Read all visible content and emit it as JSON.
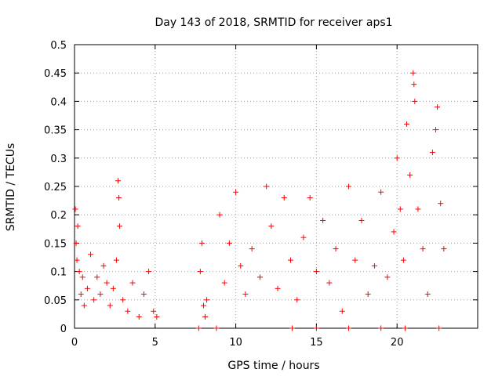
{
  "chart_data": {
    "type": "scatter",
    "title": "Day 143 of 2018, SRMTID for receiver aps1",
    "xlabel": "GPS time / hours",
    "ylabel": "SRMTID / TECUs",
    "xlim": [
      0,
      25
    ],
    "ylim": [
      0,
      0.5
    ],
    "xticks": [
      0,
      5,
      10,
      15,
      20
    ],
    "yticks": [
      0,
      0.05,
      0.1,
      0.15,
      0.2,
      0.25,
      0.3,
      0.35,
      0.4,
      0.45,
      0.5
    ],
    "grid": true,
    "marker": "+",
    "series": [
      {
        "name": "aps1",
        "color": "#ff0000",
        "points": [
          [
            0.05,
            0.21
          ],
          [
            0.1,
            0.15
          ],
          [
            0.15,
            0.12
          ],
          [
            0.2,
            0.18
          ],
          [
            0.3,
            0.1
          ],
          [
            0.4,
            0.06
          ],
          [
            0.5,
            0.09
          ],
          [
            0.6,
            0.04
          ],
          [
            0.8,
            0.07
          ],
          [
            1.0,
            0.13
          ],
          [
            1.2,
            0.05
          ],
          [
            1.4,
            0.09
          ],
          [
            1.6,
            0.06
          ],
          [
            1.8,
            0.11
          ],
          [
            2.0,
            0.08
          ],
          [
            2.2,
            0.04
          ],
          [
            2.4,
            0.07
          ],
          [
            2.6,
            0.12
          ],
          [
            2.7,
            0.26
          ],
          [
            2.75,
            0.23
          ],
          [
            2.8,
            0.18
          ],
          [
            3.0,
            0.05
          ],
          [
            3.3,
            0.03
          ],
          [
            3.6,
            0.08
          ],
          [
            4.0,
            0.02
          ],
          [
            4.3,
            0.06
          ],
          [
            4.6,
            0.1
          ],
          [
            4.9,
            0.03
          ],
          [
            5.1,
            0.02
          ],
          [
            7.8,
            0.1
          ],
          [
            7.9,
            0.15
          ],
          [
            8.0,
            0.04
          ],
          [
            8.1,
            0.02
          ],
          [
            8.2,
            0.05
          ],
          [
            9.0,
            0.2
          ],
          [
            9.3,
            0.08
          ],
          [
            9.6,
            0.15
          ],
          [
            10.0,
            0.24
          ],
          [
            10.3,
            0.11
          ],
          [
            10.6,
            0.06
          ],
          [
            11.0,
            0.14
          ],
          [
            11.5,
            0.09
          ],
          [
            11.9,
            0.25
          ],
          [
            12.2,
            0.18
          ],
          [
            12.6,
            0.07
          ],
          [
            13.0,
            0.23
          ],
          [
            13.4,
            0.12
          ],
          [
            13.8,
            0.05
          ],
          [
            14.2,
            0.16
          ],
          [
            14.6,
            0.23
          ],
          [
            15.0,
            0.1
          ],
          [
            15.4,
            0.19
          ],
          [
            15.8,
            0.08
          ],
          [
            16.2,
            0.14
          ],
          [
            16.6,
            0.03
          ],
          [
            17.0,
            0.25
          ],
          [
            17.4,
            0.12
          ],
          [
            17.8,
            0.19
          ],
          [
            18.2,
            0.06
          ],
          [
            18.6,
            0.11
          ],
          [
            19.0,
            0.24
          ],
          [
            19.4,
            0.09
          ],
          [
            19.8,
            0.17
          ],
          [
            20.0,
            0.3
          ],
          [
            20.2,
            0.21
          ],
          [
            20.4,
            0.12
          ],
          [
            20.6,
            0.36
          ],
          [
            20.8,
            0.27
          ],
          [
            21.0,
            0.45
          ],
          [
            21.05,
            0.43
          ],
          [
            21.1,
            0.4
          ],
          [
            21.3,
            0.21
          ],
          [
            21.6,
            0.14
          ],
          [
            21.9,
            0.06
          ],
          [
            22.2,
            0.31
          ],
          [
            22.4,
            0.35
          ],
          [
            22.5,
            0.39
          ],
          [
            22.7,
            0.22
          ],
          [
            22.9,
            0.14
          ],
          [
            22.6,
            0.0
          ],
          [
            20.5,
            0.0
          ],
          [
            19.0,
            0.0
          ],
          [
            17.0,
            0.0
          ],
          [
            15.0,
            0.0
          ],
          [
            13.5,
            0.0
          ],
          [
            8.8,
            0.0
          ],
          [
            7.7,
            0.0
          ]
        ]
      }
    ],
    "annotations": [],
    "style": {
      "background": "#ffffff",
      "axis_color": "#000000",
      "grid_color": "#a0a0a0",
      "marker_color": "#ff0000"
    }
  }
}
